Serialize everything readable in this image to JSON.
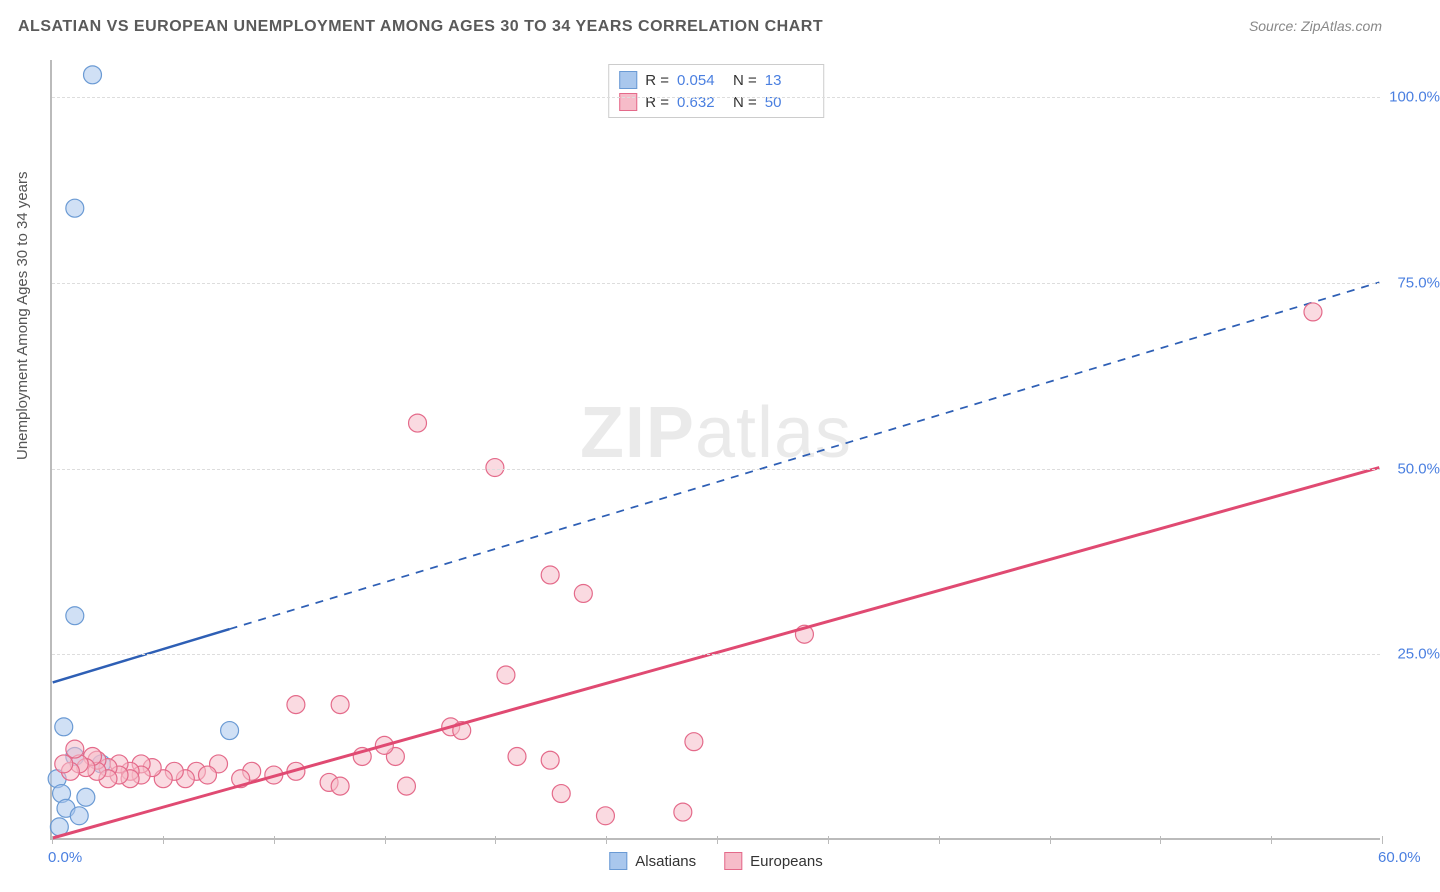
{
  "title": "ALSATIAN VS EUROPEAN UNEMPLOYMENT AMONG AGES 30 TO 34 YEARS CORRELATION CHART",
  "source": "Source: ZipAtlas.com",
  "ylabel": "Unemployment Among Ages 30 to 34 years",
  "watermark_a": "ZIP",
  "watermark_b": "atlas",
  "chart": {
    "type": "scatter",
    "xlim": [
      0,
      60
    ],
    "ylim": [
      0,
      105
    ],
    "xticks": [
      0,
      5,
      10,
      15,
      20,
      25,
      30,
      35,
      40,
      45,
      50,
      55,
      60
    ],
    "yticks": [
      25,
      50,
      75,
      100
    ],
    "xtick_labels": {
      "0": "0.0%",
      "60": "60.0%"
    },
    "ytick_labels": {
      "25": "25.0%",
      "50": "50.0%",
      "75": "75.0%",
      "100": "100.0%"
    },
    "background_color": "#ffffff",
    "grid_color": "#dddddd",
    "axis_color": "#bbbbbb",
    "tick_label_color": "#4a7fe0",
    "series": [
      {
        "name": "Alsatians",
        "color_fill": "#a9c7ed",
        "color_stroke": "#6a9ad4",
        "marker_radius": 9,
        "r_label": "R =",
        "r_value": "0.054",
        "n_label": "N =",
        "n_value": "13",
        "trend": {
          "x1": 0,
          "y1": 21,
          "x2": 60,
          "y2": 75,
          "solid_until_x": 8,
          "color": "#2e5fb5",
          "width": 2.5
        },
        "points": [
          [
            1.8,
            103
          ],
          [
            1.0,
            85
          ],
          [
            1.0,
            30
          ],
          [
            0.5,
            15
          ],
          [
            8.0,
            14.5
          ],
          [
            1.0,
            11
          ],
          [
            2.2,
            10
          ],
          [
            0.2,
            8
          ],
          [
            0.4,
            6
          ],
          [
            1.5,
            5.5
          ],
          [
            0.6,
            4
          ],
          [
            1.2,
            3
          ],
          [
            0.3,
            1.5
          ]
        ]
      },
      {
        "name": "Europeans",
        "color_fill": "#f6bcc9",
        "color_stroke": "#e46a8a",
        "marker_radius": 9,
        "r_label": "R =",
        "r_value": "0.632",
        "n_label": "N =",
        "n_value": "50",
        "trend": {
          "x1": 0,
          "y1": 0,
          "x2": 60,
          "y2": 50,
          "solid_until_x": 60,
          "color": "#e04a72",
          "width": 3
        },
        "points": [
          [
            57,
            71
          ],
          [
            16.5,
            56
          ],
          [
            20,
            50
          ],
          [
            22.5,
            35.5
          ],
          [
            24,
            33
          ],
          [
            34,
            27.5
          ],
          [
            20.5,
            22
          ],
          [
            29,
            13
          ],
          [
            25,
            3
          ],
          [
            28.5,
            3.5
          ],
          [
            18,
            15
          ],
          [
            18.5,
            14.5
          ],
          [
            21,
            11
          ],
          [
            22.5,
            10.5
          ],
          [
            23,
            6
          ],
          [
            15.5,
            11
          ],
          [
            15,
            12.5
          ],
          [
            16,
            7
          ],
          [
            13,
            18
          ],
          [
            14,
            11
          ],
          [
            12.5,
            7.5
          ],
          [
            13,
            7
          ],
          [
            11,
            9
          ],
          [
            11,
            18
          ],
          [
            10,
            8.5
          ],
          [
            9,
            9
          ],
          [
            8.5,
            8
          ],
          [
            7.5,
            10
          ],
          [
            6.5,
            9
          ],
          [
            7,
            8.5
          ],
          [
            6,
            8
          ],
          [
            5.5,
            9
          ],
          [
            5,
            8
          ],
          [
            4.5,
            9.5
          ],
          [
            4,
            10
          ],
          [
            4,
            8.5
          ],
          [
            3.5,
            9
          ],
          [
            3.5,
            8
          ],
          [
            3,
            10
          ],
          [
            3,
            8.5
          ],
          [
            2.5,
            9.5
          ],
          [
            2.5,
            8
          ],
          [
            2,
            10.5
          ],
          [
            2,
            9
          ],
          [
            1.8,
            11
          ],
          [
            1.5,
            9.5
          ],
          [
            1.2,
            10
          ],
          [
            1,
            12
          ],
          [
            0.8,
            9
          ],
          [
            0.5,
            10
          ]
        ]
      }
    ],
    "legend_bottom": [
      {
        "label": "Alsatians",
        "fill": "#a9c7ed",
        "stroke": "#6a9ad4"
      },
      {
        "label": "Europeans",
        "fill": "#f6bcc9",
        "stroke": "#e46a8a"
      }
    ]
  }
}
